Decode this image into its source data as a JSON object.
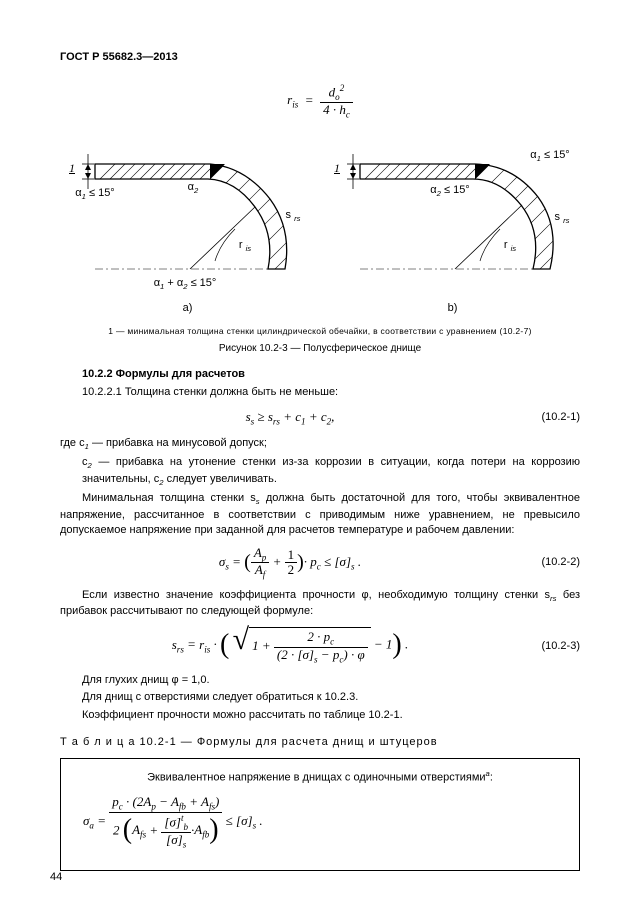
{
  "header": "ГОСТ Р 55682.3—2013",
  "eq_top": {
    "lhs": "r<sub>is</sub>",
    "num": "d<sub>o</sub><sup>2</sup>",
    "den": "4 · h<sub>c</sub>"
  },
  "figure": {
    "note": "1 — минимальная толщина стенки цилиндрической обечайки, в соответствии с уравнением (10.2-7)",
    "caption": "Рисунок 10.2-3 — Полусферическое днище",
    "labels": {
      "one": "1",
      "a1": "α<sub>1</sub> ≤ 15°",
      "a2_a": "α<sub>2</sub>",
      "a2_b": "α<sub>2</sub> ≤ 15°",
      "srs": "s <sub>rs</sub>",
      "ris": "r <sub>is</sub>",
      "sum": "α<sub>1</sub> + α<sub>2</sub> ≤ 15°",
      "a": "a)",
      "b": "b)"
    }
  },
  "section": {
    "title": "10.2.2 Формулы для расчетов",
    "p1": "10.2.2.1 Толщина стенки должна быть не меньше:",
    "eq1": {
      "formula": "s<sub>s</sub> ≥ s<sub>rs</sub> + c<sub>1</sub> + c<sub>2</sub>,",
      "num": "(10.2-1)"
    },
    "p2a": "где c<sub>1</sub> — прибавка на минусовой допуск;",
    "p2b": "c<sub>2</sub> — прибавка на утонение стенки из-за коррозии в ситуации, когда потери на коррозию значительны, c<sub>2</sub> следует увеличивать.",
    "p3": "Минимальная толщина стенки s<sub>s</sub> должна быть достаточной для того, чтобы эквивалентное напряжение, рассчитанное в соответствии с приводимым ниже уравнением, не превысило допускаемое напряжение при заданной для расчетов температуре и рабочем давлении:",
    "eq2": {
      "num": "(10.2-2)"
    },
    "p4": "Если известно значение коэффициента прочности φ, необходимую толщину стенки s<sub>rs</sub> без прибавок рассчитывают по следующей формуле:",
    "eq3": {
      "num": "(10.2-3)"
    },
    "p5": "Для глухих днищ φ = 1,0.",
    "p6": "Для днищ с отверстиями следует обратиться к 10.2.3.",
    "p7": "Коэффициент прочности можно рассчитать по таблице 10.2-1."
  },
  "table": {
    "title": "Т а б л и ц а  10.2-1 — Формулы для расчета днищ и штуцеров",
    "header": "Эквивалентное напряжение в днищах с одиночными отверстиями<sup>a</sup>:"
  },
  "pagenum": "44"
}
